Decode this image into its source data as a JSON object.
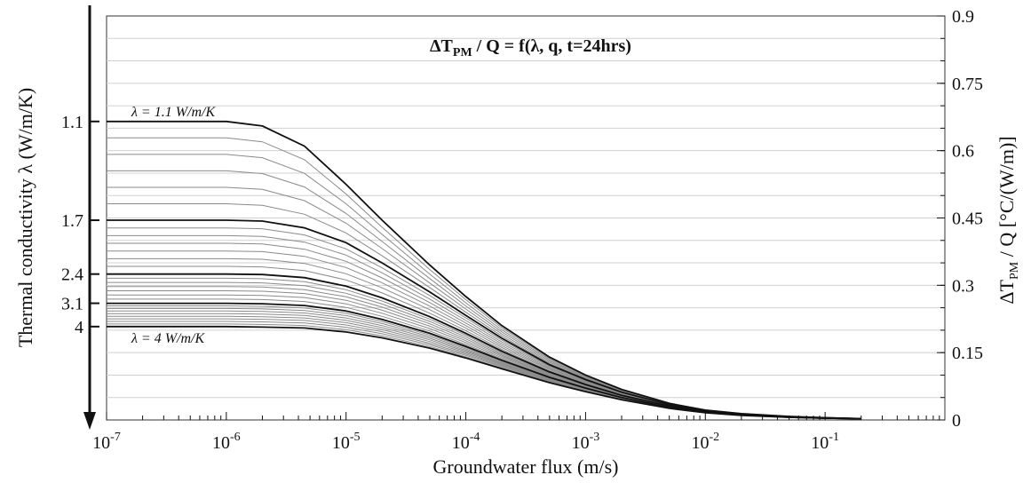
{
  "chart_data": {
    "type": "line",
    "title": "ΔT / Q = f(λ, q, t=24hrs)",
    "title_parts": {
      "delta": "ΔT",
      "sub": "PM",
      "rest": " / Q = f(λ, q, t=24hrs)"
    },
    "xlabel": "Groundwater flux (m/s)",
    "ylabel_right": {
      "main": "ΔT",
      "sub": "PM",
      "rest": " / Q [°C/(W/m)]"
    },
    "ylabel_left": "Thermal conductivity λ (W/m/K)",
    "x_scale": "log",
    "xlim": [
      "1e-7",
      "1"
    ],
    "x_ticks": [
      {
        "value": 1e-07,
        "exp": "-7"
      },
      {
        "value": 1e-06,
        "exp": "-6"
      },
      {
        "value": 1e-05,
        "exp": "-5"
      },
      {
        "value": 0.0001,
        "exp": "-4"
      },
      {
        "value": 0.001,
        "exp": "-3"
      },
      {
        "value": 0.01,
        "exp": "-2"
      },
      {
        "value": 0.1,
        "exp": "-1"
      }
    ],
    "x_tick_base": "10",
    "ylim": [
      0,
      0.9
    ],
    "y_ticks_right": [
      "0",
      "0.15",
      "0.3",
      "0.45",
      "0.6",
      "0.75",
      "0.9"
    ],
    "y_ticks_right_values": [
      0,
      0.15,
      0.3,
      0.45,
      0.6,
      0.75,
      0.9
    ],
    "left_axis_ticks": [
      {
        "label": "1.1",
        "value": 1.1
      },
      {
        "label": "1.7",
        "value": 1.7
      },
      {
        "label": "2.4",
        "value": 2.4
      },
      {
        "label": "3.1",
        "value": 3.1
      },
      {
        "label": "4",
        "value": 4.0
      }
    ],
    "annotations": [
      {
        "text": "λ = 1.1 W/m/K",
        "lambda": 1.1
      },
      {
        "text": "λ = 4 W/m/K",
        "lambda": 4.0
      }
    ],
    "x": [
      1e-07,
      1e-06,
      2e-06,
      4.5e-06,
      1e-05,
      2e-05,
      5e-05,
      0.0001,
      0.0002,
      0.0005,
      0.001,
      0.002,
      0.005,
      0.01,
      0.02,
      0.05,
      0.1,
      0.2
    ],
    "highlighted_lambdas": [
      1.1,
      1.7,
      2.4,
      3.1,
      4.0
    ],
    "lambda_range": {
      "min": 1.1,
      "max": 4.0,
      "count": 30
    },
    "series": [
      {
        "lambda": 1.1,
        "values": [
          0.665,
          0.665,
          0.655,
          0.61,
          0.525,
          0.445,
          0.345,
          0.275,
          0.21,
          0.14,
          0.1,
          0.068,
          0.037,
          0.022,
          0.014,
          0.008,
          0.005,
          0.003
        ]
      },
      {
        "lambda": 1.7,
        "values": [
          0.445,
          0.445,
          0.443,
          0.428,
          0.395,
          0.35,
          0.285,
          0.233,
          0.182,
          0.123,
          0.09,
          0.062,
          0.034,
          0.021,
          0.013,
          0.007,
          0.005,
          0.003
        ]
      },
      {
        "lambda": 2.4,
        "values": [
          0.325,
          0.325,
          0.324,
          0.317,
          0.298,
          0.272,
          0.23,
          0.193,
          0.153,
          0.107,
          0.079,
          0.055,
          0.031,
          0.019,
          0.012,
          0.007,
          0.004,
          0.003
        ]
      },
      {
        "lambda": 3.1,
        "values": [
          0.26,
          0.26,
          0.259,
          0.255,
          0.243,
          0.224,
          0.193,
          0.164,
          0.133,
          0.095,
          0.071,
          0.05,
          0.028,
          0.018,
          0.011,
          0.006,
          0.004,
          0.003
        ]
      },
      {
        "lambda": 4.0,
        "values": [
          0.208,
          0.208,
          0.207,
          0.205,
          0.196,
          0.183,
          0.16,
          0.138,
          0.114,
          0.083,
          0.063,
          0.045,
          0.026,
          0.016,
          0.01,
          0.006,
          0.004,
          0.003
        ]
      }
    ],
    "grid": "horizontal",
    "colors": {
      "highlight": "#111111",
      "intermediate": "#8a8a8a",
      "grid": "#d0d0d0",
      "axis": "#111111"
    }
  }
}
